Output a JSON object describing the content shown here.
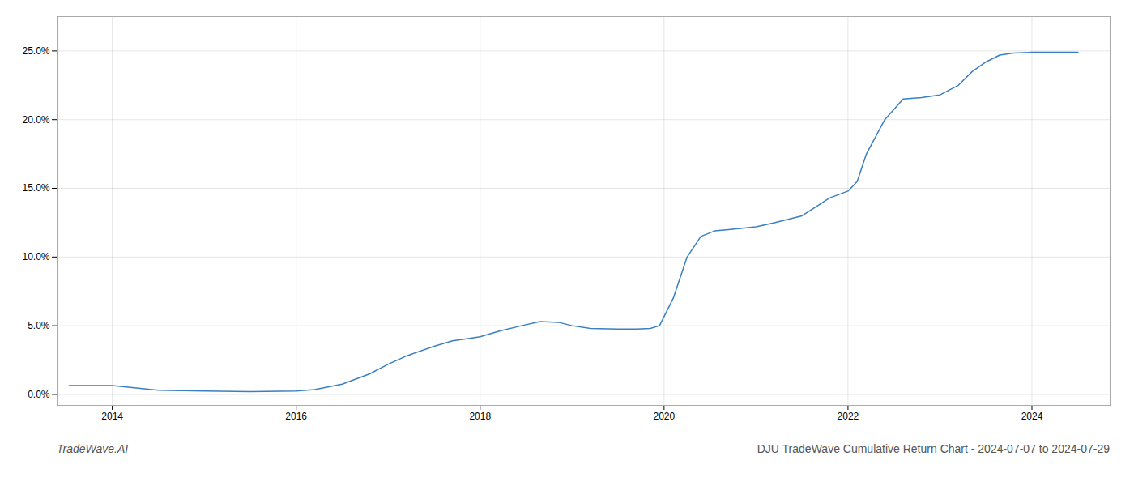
{
  "chart_data": {
    "type": "line",
    "title": "DJU TradeWave Cumulative Return Chart - 2024-07-07 to 2024-07-29",
    "annotations": [
      "TradeWave.AI"
    ],
    "x": [
      2013.53,
      2014.0,
      2014.5,
      2015.0,
      2015.5,
      2016.0,
      2016.2,
      2016.5,
      2016.8,
      2017.0,
      2017.2,
      2017.5,
      2017.7,
      2017.9,
      2018.0,
      2018.2,
      2018.45,
      2018.65,
      2018.85,
      2019.0,
      2019.2,
      2019.5,
      2019.7,
      2019.85,
      2019.95,
      2020.1,
      2020.25,
      2020.4,
      2020.55,
      2020.7,
      2020.85,
      2021.0,
      2021.2,
      2021.5,
      2021.8,
      2022.0,
      2022.1,
      2022.2,
      2022.4,
      2022.6,
      2022.8,
      2023.0,
      2023.2,
      2023.35,
      2023.5,
      2023.65,
      2023.8,
      2024.0,
      2024.2,
      2024.5
    ],
    "values": [
      0.65,
      0.65,
      0.3,
      0.25,
      0.2,
      0.25,
      0.35,
      0.75,
      1.5,
      2.2,
      2.8,
      3.5,
      3.9,
      4.1,
      4.2,
      4.6,
      5.0,
      5.3,
      5.25,
      5.0,
      4.8,
      4.75,
      4.75,
      4.8,
      5.0,
      7.0,
      10.0,
      11.5,
      11.9,
      12.0,
      12.1,
      12.2,
      12.5,
      13.0,
      14.3,
      14.8,
      15.5,
      17.5,
      20.0,
      21.5,
      21.6,
      21.8,
      22.5,
      23.5,
      24.2,
      24.7,
      24.85,
      24.9,
      24.9,
      24.9
    ],
    "color": "#3a7fc1",
    "xlim": [
      2013.4,
      2024.85
    ],
    "ylim": [
      -0.8,
      27.5
    ],
    "xticks": [
      2014,
      2016,
      2018,
      2020,
      2022,
      2024
    ],
    "yticks": [
      {
        "value": 0.0,
        "label": "0.0%"
      },
      {
        "value": 5.0,
        "label": "5.0%"
      },
      {
        "value": 10.0,
        "label": "10.0%"
      },
      {
        "value": 15.0,
        "label": "15.0%"
      },
      {
        "value": 20.0,
        "label": "20.0%"
      },
      {
        "value": 25.0,
        "label": "25.0%"
      }
    ],
    "grid": true
  }
}
